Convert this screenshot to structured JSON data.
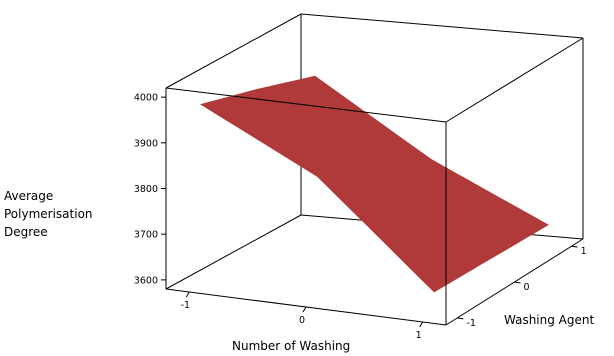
{
  "chart_data": {
    "type": "surface3d",
    "title": "",
    "xlabel": "Number of Washing",
    "ylabel": "Washing Agent",
    "zlabel": [
      "Average",
      "Polymerisation",
      "Degree"
    ],
    "x_ticks": [
      "-1",
      "0",
      "1"
    ],
    "y_ticks": [
      "-1",
      "0",
      "1"
    ],
    "z_ticks": [
      "3600",
      "3700",
      "3800",
      "3900",
      "4000"
    ],
    "xlim": [
      -1.2,
      1.2
    ],
    "ylim": [
      -1.2,
      1.2
    ],
    "zlim": [
      3580,
      4020
    ],
    "x": [
      -1,
      0,
      1
    ],
    "y": [
      -1,
      0,
      1
    ],
    "series": [
      {
        "z": [
          [
            3975,
            3930,
            3880
          ],
          [
            3850,
            3790,
            3730
          ],
          [
            3630,
            3625,
            3620
          ]
        ],
        "color_front": "#b03a3a",
        "color_back": "#4444aa"
      }
    ],
    "colors": {
      "surface_top": "#b03a3a",
      "surface_bottom": "#4444aa",
      "box": "#000000"
    }
  }
}
